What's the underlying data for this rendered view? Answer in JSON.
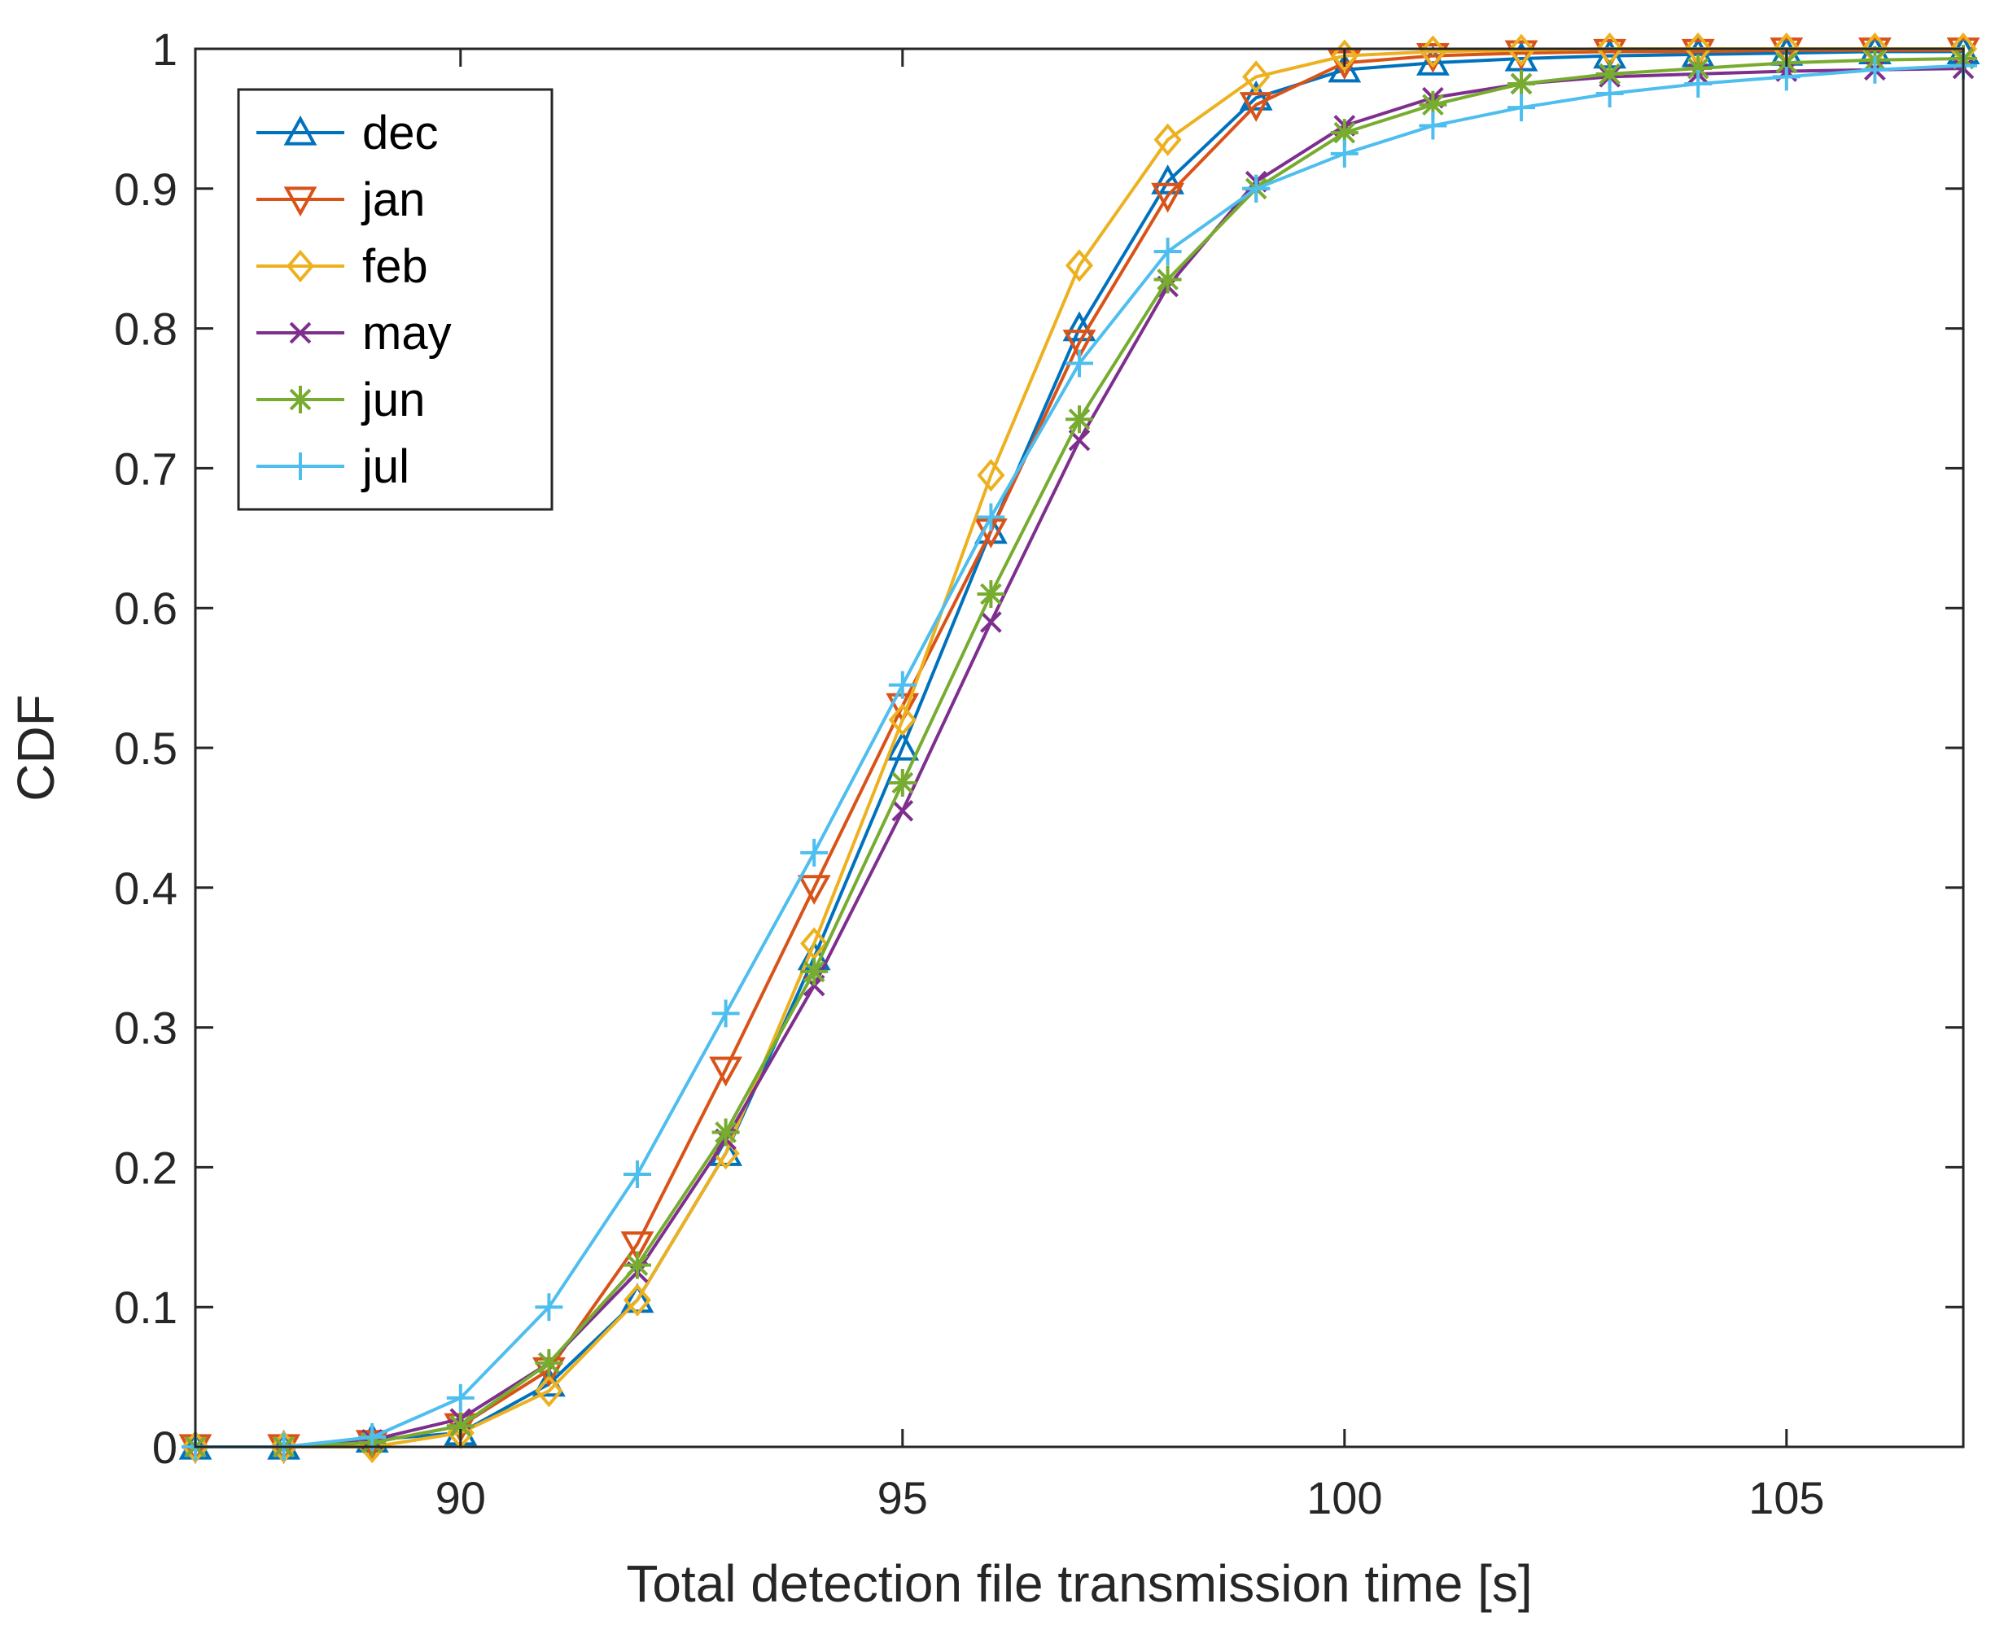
{
  "chart_data": {
    "type": "line",
    "title": "",
    "xlabel": "Total detection file transmission time [s]",
    "ylabel": "CDF",
    "xlim": [
      87,
      107
    ],
    "ylim": [
      0,
      1
    ],
    "xticks": [
      90,
      95,
      100,
      105
    ],
    "yticks": [
      0,
      0.1,
      0.2,
      0.3,
      0.4,
      0.5,
      0.6,
      0.7,
      0.8,
      0.9,
      1
    ],
    "ytick_labels": [
      "0",
      "0.1",
      "0.2",
      "0.3",
      "0.4",
      "0.5",
      "0.6",
      "0.7",
      "0.8",
      "0.9",
      "1"
    ],
    "grid": false,
    "legend_position": "top-left",
    "x": [
      87,
      88,
      89,
      90,
      91,
      92,
      93,
      94,
      95,
      96,
      97,
      98,
      99,
      100,
      101,
      102,
      103,
      104,
      105,
      106,
      107
    ],
    "series": [
      {
        "name": "dec",
        "color": "#0072BD",
        "marker": "triangle-up",
        "values": [
          0,
          0,
          0.005,
          0.01,
          0.045,
          0.105,
          0.21,
          0.35,
          0.5,
          0.655,
          0.8,
          0.905,
          0.965,
          0.985,
          0.99,
          0.993,
          0.995,
          0.996,
          0.997,
          0.998,
          0.998
        ]
      },
      {
        "name": "jan",
        "color": "#D95319",
        "marker": "triangle-down",
        "values": [
          0,
          0,
          0.003,
          0.015,
          0.055,
          0.145,
          0.27,
          0.4,
          0.53,
          0.655,
          0.79,
          0.895,
          0.96,
          0.99,
          0.995,
          0.997,
          0.998,
          0.998,
          0.999,
          0.999,
          0.999
        ]
      },
      {
        "name": "feb",
        "color": "#EDB120",
        "marker": "diamond",
        "values": [
          0,
          0,
          0,
          0.01,
          0.04,
          0.105,
          0.21,
          0.36,
          0.52,
          0.695,
          0.845,
          0.935,
          0.98,
          0.995,
          0.998,
          0.999,
          1.0,
          1.0,
          1.0,
          1.0,
          1.0
        ]
      },
      {
        "name": "may",
        "color": "#7E2F8E",
        "marker": "x",
        "values": [
          0,
          0,
          0.005,
          0.02,
          0.06,
          0.125,
          0.22,
          0.33,
          0.455,
          0.59,
          0.72,
          0.83,
          0.905,
          0.945,
          0.965,
          0.975,
          0.98,
          0.982,
          0.984,
          0.985,
          0.986
        ]
      },
      {
        "name": "jun",
        "color": "#77AC30",
        "marker": "asterisk",
        "values": [
          0,
          0,
          0.003,
          0.015,
          0.06,
          0.13,
          0.225,
          0.34,
          0.475,
          0.61,
          0.735,
          0.835,
          0.9,
          0.94,
          0.96,
          0.975,
          0.982,
          0.986,
          0.99,
          0.992,
          0.993
        ]
      },
      {
        "name": "jul",
        "color": "#4DBEEE",
        "marker": "plus",
        "values": [
          0,
          0,
          0.007,
          0.035,
          0.1,
          0.195,
          0.31,
          0.425,
          0.545,
          0.665,
          0.775,
          0.855,
          0.9,
          0.925,
          0.945,
          0.958,
          0.968,
          0.975,
          0.98,
          0.985,
          0.988
        ]
      }
    ]
  }
}
